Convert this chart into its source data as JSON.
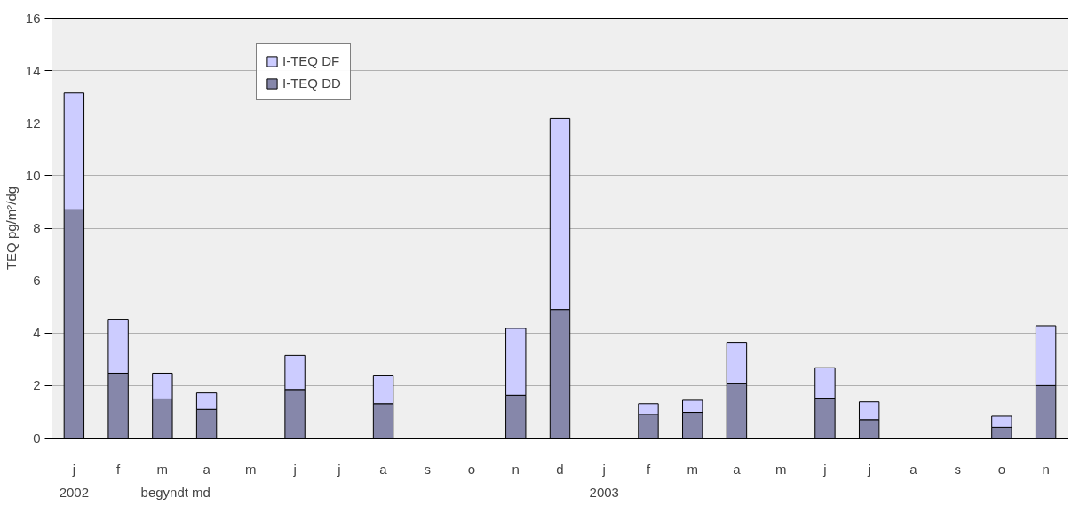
{
  "chart_data": {
    "type": "bar",
    "stacked": true,
    "ylabel": "TEQ pg/m²/dg",
    "xlabel": "begyndt md",
    "annotations": [
      "2002",
      "2003"
    ],
    "categories": [
      "j",
      "f",
      "m",
      "a",
      "m",
      "j",
      "j",
      "a",
      "s",
      "o",
      "n",
      "d",
      "j",
      "f",
      "m",
      "a",
      "m",
      "j",
      "j",
      "a",
      "s",
      "o",
      "n"
    ],
    "series": [
      {
        "name": "I-TEQ DD",
        "color": "#8687aa",
        "values": [
          8.7,
          2.47,
          1.49,
          1.09,
          null,
          1.85,
          null,
          1.31,
          null,
          null,
          1.63,
          4.9,
          null,
          0.9,
          0.98,
          2.07,
          null,
          1.52,
          0.7,
          null,
          null,
          0.41,
          2.0
        ]
      },
      {
        "name": "I-TEQ DF",
        "color": "#ccccff",
        "values": [
          4.45,
          2.06,
          0.98,
          0.63,
          null,
          1.3,
          null,
          1.09,
          null,
          null,
          2.55,
          7.28,
          null,
          0.41,
          0.46,
          1.58,
          null,
          1.16,
          0.68,
          null,
          null,
          0.42,
          2.28
        ]
      }
    ],
    "ylim": [
      0,
      16
    ],
    "yticks": [
      0,
      2,
      4,
      6,
      8,
      10,
      12,
      14,
      16
    ],
    "grid": "y",
    "legend": "top left"
  }
}
